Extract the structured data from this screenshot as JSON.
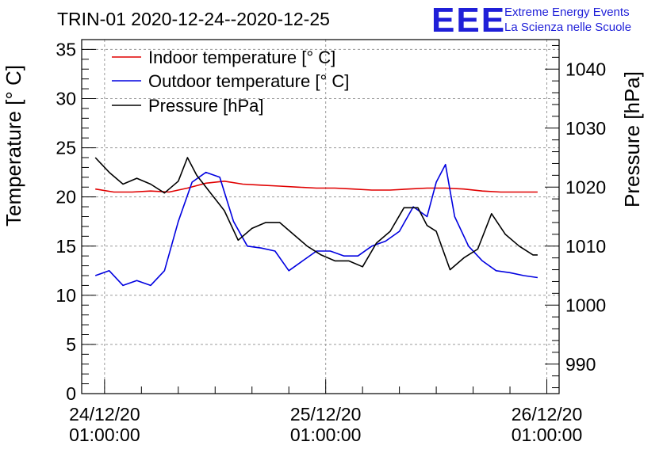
{
  "header": {
    "title": "TRIN-01 2020-12-24--2020-12-25",
    "logo_text": "EEE",
    "org_line1": "Extreme Energy Events",
    "org_line2": "La Scienza nelle Scuole"
  },
  "colors": {
    "indoor": "#e00000",
    "outdoor": "#0000e0",
    "pressure": "#000000",
    "logo": "#1f1fd8"
  },
  "chart_data": {
    "type": "line",
    "title": "TRIN-01 2020-12-24--2020-12-25",
    "ylabel": "Temperature [° C]",
    "y2label": "Pressure [hPa]",
    "ylim": [
      0,
      36
    ],
    "y2lim": [
      985,
      1045
    ],
    "xlim": [
      "2020-12-23T22:31",
      "2020-12-26T02:20"
    ],
    "grid": true,
    "legend_position": "top-left",
    "yticks": [
      "0",
      "5",
      "10",
      "15",
      "20",
      "25",
      "30",
      "35"
    ],
    "y2ticks": [
      "990",
      "1000",
      "1010",
      "1020",
      "1030",
      "1040"
    ],
    "xticks": [
      {
        "date": "24/12/20",
        "time": "01:00:00",
        "x": "2020-12-24T01:00"
      },
      {
        "date": "25/12/20",
        "time": "01:00:00",
        "x": "2020-12-25T01:00"
      },
      {
        "date": "26/12/20",
        "time": "01:00:00",
        "x": "2020-12-26T01:00"
      }
    ],
    "series": [
      {
        "name": "Indoor temperature [° C]",
        "axis": "left",
        "x": [
          "2020-12-24T00:00",
          "2020-12-24T02:00",
          "2020-12-24T04:00",
          "2020-12-24T06:00",
          "2020-12-24T08:00",
          "2020-12-24T10:00",
          "2020-12-24T12:00",
          "2020-12-24T14:00",
          "2020-12-24T16:00",
          "2020-12-24T18:00",
          "2020-12-24T20:00",
          "2020-12-24T22:00",
          "2020-12-25T00:00",
          "2020-12-25T02:00",
          "2020-12-25T04:00",
          "2020-12-25T06:00",
          "2020-12-25T08:00",
          "2020-12-25T10:00",
          "2020-12-25T12:00",
          "2020-12-25T14:00",
          "2020-12-25T16:00",
          "2020-12-25T18:00",
          "2020-12-25T20:00",
          "2020-12-25T22:00",
          "2020-12-26T00:00"
        ],
        "values": [
          20.8,
          20.5,
          20.5,
          20.6,
          20.5,
          20.9,
          21.4,
          21.6,
          21.3,
          21.2,
          21.1,
          21.0,
          20.9,
          20.9,
          20.8,
          20.7,
          20.7,
          20.8,
          20.9,
          20.9,
          20.8,
          20.6,
          20.5,
          20.5,
          20.5
        ]
      },
      {
        "name": "Outdoor temperature [° C]",
        "axis": "left",
        "x": [
          "2020-12-24T00:00",
          "2020-12-24T01:30",
          "2020-12-24T03:00",
          "2020-12-24T04:30",
          "2020-12-24T06:00",
          "2020-12-24T07:30",
          "2020-12-24T09:00",
          "2020-12-24T10:30",
          "2020-12-24T12:00",
          "2020-12-24T13:30",
          "2020-12-24T15:00",
          "2020-12-24T16:30",
          "2020-12-24T18:00",
          "2020-12-24T19:30",
          "2020-12-24T21:00",
          "2020-12-24T22:30",
          "2020-12-25T00:00",
          "2020-12-25T01:30",
          "2020-12-25T03:00",
          "2020-12-25T04:30",
          "2020-12-25T06:00",
          "2020-12-25T07:30",
          "2020-12-25T09:00",
          "2020-12-25T10:30",
          "2020-12-25T12:00",
          "2020-12-25T13:00",
          "2020-12-25T14:00",
          "2020-12-25T15:00",
          "2020-12-25T16:30",
          "2020-12-25T18:00",
          "2020-12-25T19:30",
          "2020-12-25T21:00",
          "2020-12-25T22:30",
          "2020-12-26T00:00"
        ],
        "values": [
          12.0,
          12.5,
          11.0,
          11.5,
          11.0,
          12.5,
          17.5,
          21.5,
          22.5,
          22.0,
          17.5,
          15.0,
          14.8,
          14.5,
          12.5,
          13.5,
          14.5,
          14.5,
          14.0,
          14.0,
          15.0,
          15.5,
          16.5,
          19.0,
          18.0,
          21.5,
          23.3,
          18.0,
          15.0,
          13.5,
          12.5,
          12.3,
          12.0,
          11.8
        ]
      },
      {
        "name": "Pressure [hPa]",
        "axis": "right",
        "x": [
          "2020-12-24T00:00",
          "2020-12-24T01:30",
          "2020-12-24T03:00",
          "2020-12-24T04:30",
          "2020-12-24T06:00",
          "2020-12-24T07:30",
          "2020-12-24T09:00",
          "2020-12-24T10:00",
          "2020-12-24T11:00",
          "2020-12-24T12:30",
          "2020-12-24T14:00",
          "2020-12-24T15:30",
          "2020-12-24T17:00",
          "2020-12-24T18:30",
          "2020-12-24T20:00",
          "2020-12-24T21:30",
          "2020-12-24T23:00",
          "2020-12-25T00:30",
          "2020-12-25T02:00",
          "2020-12-25T03:30",
          "2020-12-25T05:00",
          "2020-12-25T06:30",
          "2020-12-25T08:00",
          "2020-12-25T09:30",
          "2020-12-25T11:00",
          "2020-12-25T12:00",
          "2020-12-25T13:00",
          "2020-12-25T14:30",
          "2020-12-25T16:00",
          "2020-12-25T17:30",
          "2020-12-25T19:00",
          "2020-12-25T20:30",
          "2020-12-25T22:00",
          "2020-12-25T23:30",
          "2020-12-26T00:00"
        ],
        "values": [
          1025.0,
          1022.5,
          1020.5,
          1021.5,
          1020.5,
          1019.0,
          1021.0,
          1025.0,
          1022.0,
          1019.0,
          1016.0,
          1011.0,
          1013.0,
          1014.0,
          1014.0,
          1012.0,
          1010.0,
          1008.5,
          1007.5,
          1007.5,
          1006.5,
          1010.5,
          1012.5,
          1016.5,
          1016.5,
          1013.5,
          1012.5,
          1006.0,
          1008.0,
          1009.5,
          1015.5,
          1012.0,
          1010.0,
          1008.5,
          1008.5
        ]
      }
    ]
  }
}
